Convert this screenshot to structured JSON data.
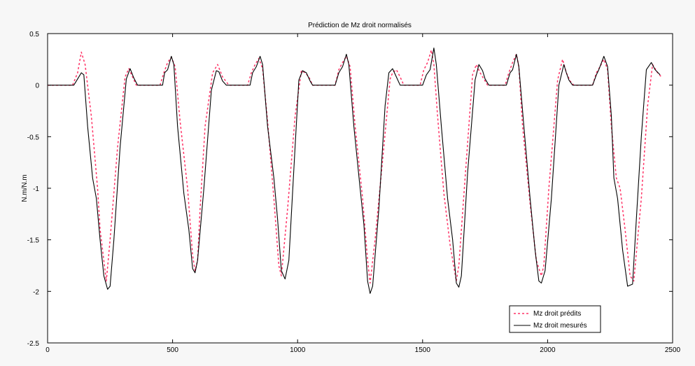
{
  "chart_data": {
    "type": "line",
    "title": "Prédiction de Mz droit normalisés",
    "xlabel": "",
    "ylabel": "N.m/N.m",
    "xlim": [
      0,
      2500
    ],
    "ylim": [
      -2.5,
      0.5
    ],
    "xticks": [
      0,
      500,
      1000,
      1500,
      2000,
      2500
    ],
    "yticks": [
      0.5,
      0,
      -0.5,
      -1,
      -1.5,
      -2,
      -2.5
    ],
    "xtick_labels": [
      "0",
      "500",
      "1000",
      "1500",
      "2000",
      "2500"
    ],
    "ytick_labels": [
      "0.5",
      "0",
      "-0.5",
      "-1",
      "-1.5",
      "-2",
      "-2.5"
    ],
    "grid": false,
    "legend_position": "bottom-right",
    "series": [
      {
        "name": "Mz droit prédits",
        "style": "dashed",
        "color": "#ff3366",
        "x": [
          0,
          100,
          120,
          135,
          150,
          175,
          200,
          210,
          235,
          250,
          280,
          310,
          325,
          340,
          355,
          370,
          450,
          465,
          480,
          495,
          510,
          530,
          560,
          580,
          590,
          600,
          610,
          630,
          660,
          680,
          700,
          725,
          800,
          815,
          830,
          845,
          860,
          880,
          905,
          925,
          935,
          960,
          990,
          1015,
          1030,
          1045,
          1060,
          1075,
          1150,
          1165,
          1180,
          1195,
          1210,
          1230,
          1260,
          1280,
          1290,
          1310,
          1345,
          1370,
          1380,
          1395,
          1410,
          1425,
          1490,
          1505,
          1520,
          1535,
          1545,
          1560,
          1585,
          1610,
          1635,
          1645,
          1670,
          1700,
          1715,
          1730,
          1745,
          1760,
          1830,
          1845,
          1860,
          1875,
          1885,
          1900,
          1930,
          1955,
          1975,
          1985,
          2005,
          2040,
          2060,
          2075,
          2090,
          2105,
          2180,
          2195,
          2210,
          2225,
          2240,
          2255,
          2275,
          2290,
          2310,
          2330,
          2345,
          2375,
          2400,
          2420,
          2440,
          2455
        ],
        "y": [
          0,
          0,
          0.12,
          0.32,
          0.2,
          -0.3,
          -1.0,
          -1.4,
          -1.9,
          -1.5,
          -0.6,
          0.08,
          0.16,
          0.08,
          0,
          0,
          0,
          0.12,
          0.22,
          0.27,
          0.18,
          -0.35,
          -1.0,
          -1.65,
          -1.8,
          -1.7,
          -1.2,
          -0.4,
          0.12,
          0.2,
          0.08,
          0,
          0,
          0.12,
          0.2,
          0.26,
          0.16,
          -0.35,
          -1.1,
          -1.75,
          -1.85,
          -1.2,
          -0.3,
          0.14,
          0.12,
          0.08,
          0,
          0,
          0,
          0.15,
          0.22,
          0.28,
          0.18,
          -0.4,
          -1.1,
          -1.7,
          -1.92,
          -1.5,
          -0.6,
          0.06,
          0.12,
          0.15,
          0.08,
          0,
          0,
          0.15,
          0.22,
          0.34,
          0.2,
          -0.3,
          -1.05,
          -1.55,
          -1.9,
          -1.75,
          -0.9,
          0.1,
          0.2,
          0.12,
          0.06,
          0,
          0,
          0.12,
          0.22,
          0.3,
          0.18,
          -0.4,
          -1.15,
          -1.7,
          -1.85,
          -1.75,
          -1.0,
          0.05,
          0.25,
          0.12,
          0.04,
          0,
          0,
          0.12,
          0.18,
          0.25,
          0.15,
          -0.4,
          -0.9,
          -1.0,
          -1.4,
          -1.85,
          -1.9,
          -1.1,
          -0.2,
          0.2,
          0.12,
          0.08
        ]
      },
      {
        "name": "Mz droit mesurés",
        "style": "solid",
        "color": "#000000",
        "x": [
          0,
          105,
          120,
          135,
          145,
          160,
          180,
          195,
          210,
          225,
          240,
          250,
          265,
          290,
          315,
          330,
          345,
          360,
          370,
          460,
          468,
          480,
          495,
          505,
          520,
          545,
          565,
          580,
          590,
          600,
          625,
          655,
          675,
          685,
          700,
          715,
          810,
          820,
          835,
          850,
          860,
          880,
          905,
          920,
          935,
          950,
          965,
          990,
          1005,
          1020,
          1035,
          1050,
          1060,
          1150,
          1165,
          1180,
          1195,
          1205,
          1225,
          1250,
          1265,
          1280,
          1290,
          1300,
          1325,
          1350,
          1365,
          1380,
          1395,
          1410,
          1500,
          1515,
          1530,
          1545,
          1555,
          1575,
          1600,
          1620,
          1635,
          1645,
          1655,
          1680,
          1710,
          1725,
          1740,
          1750,
          1765,
          1835,
          1850,
          1860,
          1875,
          1885,
          1905,
          1930,
          1950,
          1965,
          1975,
          1990,
          2015,
          2045,
          2065,
          2075,
          2085,
          2100,
          2180,
          2195,
          2205,
          2225,
          2240,
          2255,
          2265,
          2280,
          2300,
          2320,
          2340,
          2355,
          2375,
          2395,
          2415,
          2430,
          2450
        ],
        "y": [
          0,
          0,
          0.06,
          0.12,
          0.1,
          -0.4,
          -0.9,
          -1.1,
          -1.5,
          -1.85,
          -1.98,
          -1.95,
          -1.5,
          -0.6,
          0.06,
          0.16,
          0.07,
          0,
          0,
          0,
          0.12,
          0.15,
          0.28,
          0.2,
          -0.4,
          -1.05,
          -1.4,
          -1.78,
          -1.82,
          -1.7,
          -1.0,
          -0.05,
          0.14,
          0.13,
          0.04,
          0,
          0,
          0.12,
          0.18,
          0.28,
          0.2,
          -0.4,
          -0.9,
          -1.3,
          -1.8,
          -1.88,
          -1.7,
          -0.6,
          0.05,
          0.14,
          0.12,
          0.04,
          0,
          0,
          0.12,
          0.18,
          0.3,
          0.2,
          -0.4,
          -1.0,
          -1.35,
          -1.9,
          -2.02,
          -1.95,
          -1.2,
          -0.2,
          0.12,
          0.16,
          0.08,
          0,
          0,
          0.1,
          0.15,
          0.36,
          0.2,
          -0.4,
          -1.1,
          -1.5,
          -1.92,
          -1.96,
          -1.85,
          -0.85,
          0.05,
          0.2,
          0.14,
          0.06,
          0,
          0,
          0.12,
          0.15,
          0.3,
          0.18,
          -0.4,
          -1.1,
          -1.6,
          -1.9,
          -1.92,
          -1.8,
          -1.1,
          0.0,
          0.2,
          0.12,
          0.05,
          0,
          0,
          0.1,
          0.15,
          0.28,
          0.18,
          -0.3,
          -0.9,
          -1.1,
          -1.6,
          -1.95,
          -1.93,
          -1.3,
          -0.5,
          0.15,
          0.22,
          0.15,
          0.1
        ]
      }
    ]
  }
}
